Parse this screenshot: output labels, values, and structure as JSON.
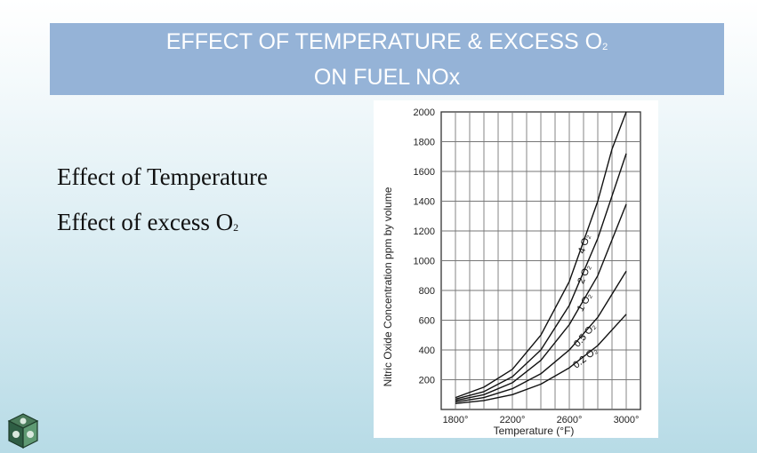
{
  "slide": {
    "title_line1": "EFFECT OF TEMPERATURE & EXCESS O",
    "title_line1_sub": "2",
    "title_line2": "ON FUEL NOx",
    "bullets": [
      {
        "text": "Effect of Temperature",
        "sub": ""
      },
      {
        "text": "Effect of excess O",
        "sub": "2"
      }
    ]
  },
  "chart_data": {
    "type": "line",
    "title": "",
    "xlabel": "Temperature (°F)",
    "ylabel": "Nitric Oxide Concentration ppm by volume",
    "xlim": [
      1700,
      3100
    ],
    "ylim": [
      0,
      2000
    ],
    "x_ticks": [
      1800,
      2200,
      2600,
      3000
    ],
    "x_tick_labels": [
      "1800°",
      "2200°",
      "2600°",
      "3000°"
    ],
    "y_ticks": [
      200,
      400,
      600,
      800,
      1000,
      1200,
      1400,
      1600,
      1800,
      2000
    ],
    "y_tick_labels": [
      "200",
      "400",
      "600",
      "800",
      "1000",
      "1200",
      "1400",
      "1600",
      "1800",
      "2000"
    ],
    "grid": true,
    "series": [
      {
        "name": "4 O2",
        "label": "4 O₂",
        "x": [
          1800,
          2000,
          2200,
          2400,
          2600,
          2800,
          2900,
          3000
        ],
        "y": [
          80,
          150,
          270,
          500,
          860,
          1400,
          1750,
          2000
        ]
      },
      {
        "name": "2 O2",
        "label": "2 O₂",
        "x": [
          1800,
          2000,
          2200,
          2400,
          2600,
          2800,
          3000
        ],
        "y": [
          70,
          120,
          220,
          400,
          700,
          1150,
          1720
        ]
      },
      {
        "name": "1 O2",
        "label": "1 O₂",
        "x": [
          1800,
          2000,
          2200,
          2400,
          2600,
          2800,
          3000
        ],
        "y": [
          60,
          100,
          180,
          330,
          570,
          900,
          1380
        ]
      },
      {
        "name": "0.5 O2",
        "label": "0.5 O₂",
        "x": [
          1800,
          2000,
          2200,
          2400,
          2600,
          2800,
          3000
        ],
        "y": [
          50,
          80,
          140,
          240,
          400,
          620,
          930
        ]
      },
      {
        "name": "0.2 O2",
        "label": "0.2 O₂",
        "x": [
          1800,
          2000,
          2200,
          2400,
          2600,
          2800,
          3000
        ],
        "y": [
          40,
          60,
          100,
          170,
          280,
          430,
          640
        ]
      }
    ]
  }
}
